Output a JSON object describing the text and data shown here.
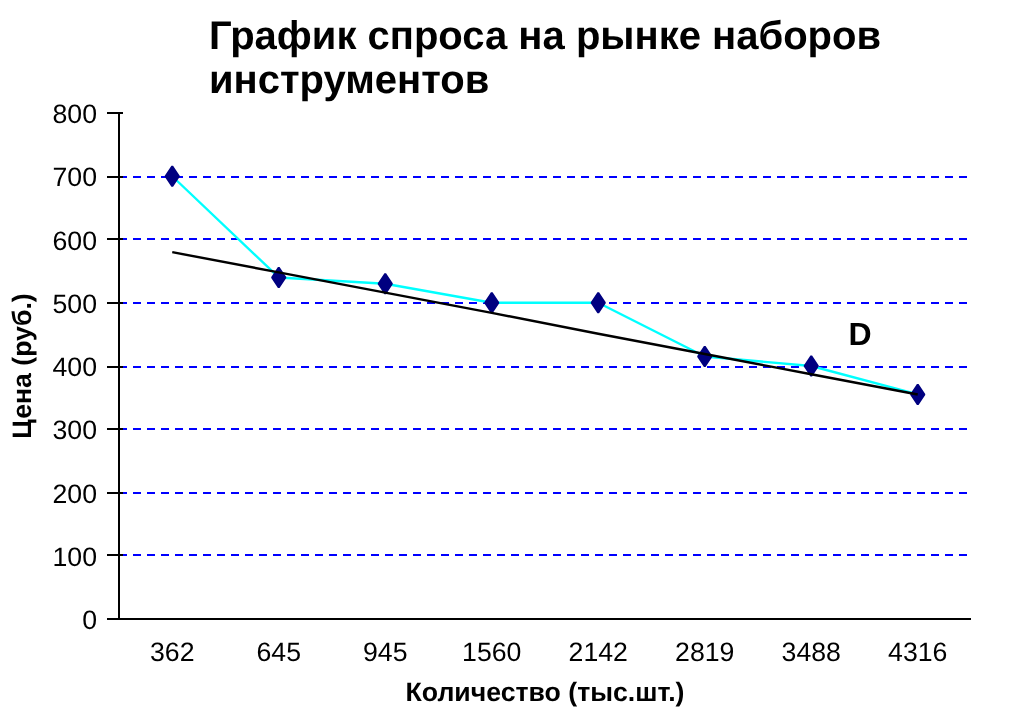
{
  "chart_data": {
    "type": "line",
    "title": "График спроса на рынке наборов инструментов",
    "xlabel": "Количество (тыс.шт.)",
    "ylabel": "Цена (руб.)",
    "categories": [
      "362",
      "645",
      "945",
      "1560",
      "2142",
      "2819",
      "3488",
      "4316"
    ],
    "series": [
      {
        "color": "#00ffff",
        "marker": "none",
        "values": [
          700,
          540,
          530,
          500,
          500,
          415,
          400,
          355
        ]
      },
      {
        "type": "scatter",
        "color": "#000080",
        "marker": "diamond",
        "values": [
          700,
          540,
          530,
          500,
          500,
          415,
          400,
          355
        ]
      },
      {
        "color": "#000000",
        "marker": "none",
        "values": [
          580,
          548,
          516,
          484,
          451,
          419,
          387,
          355
        ]
      }
    ],
    "annotations": [
      {
        "text": "D",
        "x": "3488",
        "y": 420
      }
    ],
    "ylim": [
      0,
      800
    ],
    "yticks": [
      0,
      100,
      200,
      300,
      400,
      500,
      600,
      700,
      800
    ],
    "grid": "y"
  }
}
